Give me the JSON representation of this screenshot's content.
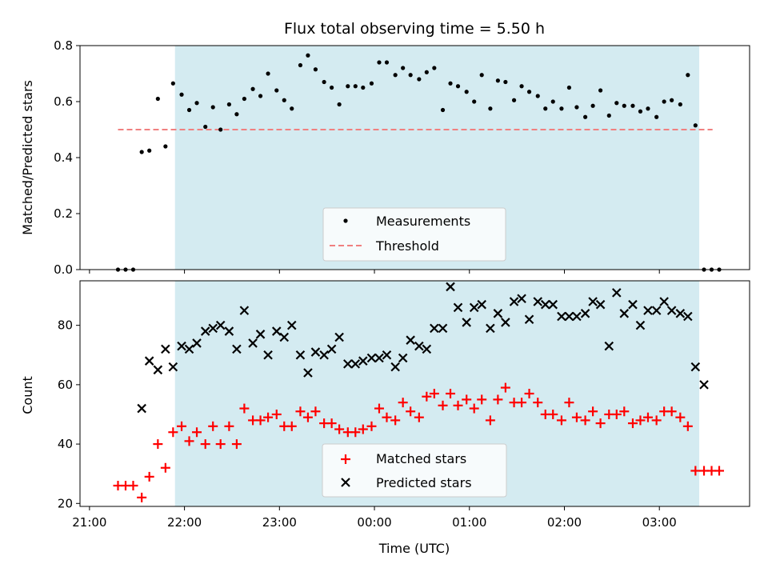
{
  "chart_data": {
    "type": "scatter",
    "title": "Flux total observing time = 5.50 h",
    "xlabel": "Time (UTC)",
    "x_tick_labels": [
      "21:00",
      "22:00",
      "23:00",
      "00:00",
      "01:00",
      "02:00",
      "03:00"
    ],
    "x_tick_hours": [
      0,
      1,
      2,
      3,
      4,
      5,
      6
    ],
    "x_range_hours": [
      -0.1,
      6.95
    ],
    "x_reference": "21:00",
    "observing_window_hours": [
      0.9,
      6.42
    ],
    "observing_window_color": "#d4ebf1",
    "top_panel": {
      "ylabel": "Matched/Predicted stars",
      "ylim": [
        0,
        0.8
      ],
      "yticks": [
        "0.0",
        "0.2",
        "0.4",
        "0.6",
        "0.8"
      ],
      "threshold": 0.5,
      "threshold_x_range_hours": [
        0.3,
        6.56
      ],
      "threshold_color": "#f08080",
      "legend": {
        "position": "lower center",
        "entries": [
          "Measurements",
          "Threshold"
        ]
      },
      "measurements": {
        "name": "Measurements",
        "color": "#000000",
        "x": [
          0.3,
          0.38,
          0.46,
          0.55,
          0.63,
          0.72,
          0.8,
          0.88,
          0.97,
          1.05,
          1.13,
          1.22,
          1.3,
          1.38,
          1.47,
          1.55,
          1.63,
          1.72,
          1.8,
          1.88,
          1.97,
          2.05,
          2.13,
          2.22,
          2.3,
          2.38,
          2.47,
          2.55,
          2.63,
          2.72,
          2.8,
          2.88,
          2.97,
          3.05,
          3.13,
          3.22,
          3.3,
          3.38,
          3.47,
          3.55,
          3.63,
          3.72,
          3.8,
          3.88,
          3.97,
          4.05,
          4.13,
          4.22,
          4.3,
          4.38,
          4.47,
          4.55,
          4.63,
          4.72,
          4.8,
          4.88,
          4.97,
          5.05,
          5.13,
          5.22,
          5.3,
          5.38,
          5.47,
          5.55,
          5.63,
          5.72,
          5.8,
          5.88,
          5.97,
          6.05,
          6.13,
          6.22,
          6.3,
          6.38,
          6.47,
          6.55,
          6.63
        ],
        "y": [
          0,
          0,
          0,
          0.42,
          0.425,
          0.61,
          0.44,
          0.665,
          0.625,
          0.57,
          0.595,
          0.51,
          0.58,
          0.5,
          0.59,
          0.555,
          0.61,
          0.645,
          0.62,
          0.7,
          0.64,
          0.605,
          0.575,
          0.73,
          0.765,
          0.715,
          0.67,
          0.65,
          0.59,
          0.655,
          0.655,
          0.65,
          0.665,
          0.74,
          0.74,
          0.695,
          0.72,
          0.695,
          0.68,
          0.705,
          0.72,
          0.57,
          0.665,
          0.655,
          0.635,
          0.6,
          0.695,
          0.575,
          0.675,
          0.67,
          0.605,
          0.655,
          0.635,
          0.62,
          0.575,
          0.6,
          0.575,
          0.65,
          0.58,
          0.545,
          0.585,
          0.64,
          0.55,
          0.595,
          0.585,
          0.585,
          0.565,
          0.575,
          0.545,
          0.6,
          0.605,
          0.59,
          0.695,
          0.515,
          0,
          0,
          0
        ]
      }
    },
    "bottom_panel": {
      "ylabel": "Count",
      "ylim": [
        19,
        95
      ],
      "yticks": [
        "20",
        "40",
        "60",
        "80"
      ],
      "ytick_values": [
        20,
        40,
        60,
        80
      ],
      "legend": {
        "position": "lower center",
        "entries": [
          "Matched stars",
          "Predicted stars"
        ]
      },
      "series": [
        {
          "name": "Matched stars",
          "marker": "+",
          "color": "#ff0000",
          "x": [
            0.3,
            0.38,
            0.46,
            0.55,
            0.63,
            0.72,
            0.8,
            0.88,
            0.97,
            1.05,
            1.13,
            1.22,
            1.3,
            1.38,
            1.47,
            1.55,
            1.63,
            1.72,
            1.8,
            1.88,
            1.97,
            2.05,
            2.13,
            2.22,
            2.3,
            2.38,
            2.47,
            2.55,
            2.63,
            2.72,
            2.8,
            2.88,
            2.97,
            3.05,
            3.13,
            3.22,
            3.3,
            3.38,
            3.47,
            3.55,
            3.63,
            3.72,
            3.8,
            3.88,
            3.97,
            4.05,
            4.13,
            4.22,
            4.3,
            4.38,
            4.47,
            4.55,
            4.63,
            4.72,
            4.8,
            4.88,
            4.97,
            5.05,
            5.13,
            5.22,
            5.3,
            5.38,
            5.47,
            5.55,
            5.63,
            5.72,
            5.8,
            5.88,
            5.97,
            6.05,
            6.13,
            6.22,
            6.3,
            6.38,
            6.47,
            6.55,
            6.63
          ],
          "y": [
            26,
            26,
            26,
            22,
            29,
            40,
            32,
            44,
            46,
            41,
            44,
            40,
            46,
            40,
            46,
            40,
            52,
            48,
            48,
            49,
            50,
            46,
            46,
            51,
            49,
            51,
            47,
            47,
            45,
            44,
            44,
            45,
            46,
            52,
            49,
            48,
            54,
            51,
            49,
            56,
            57,
            53,
            57,
            53,
            55,
            52,
            55,
            48,
            55,
            59,
            54,
            54,
            57,
            54,
            50,
            50,
            48,
            54,
            49,
            48,
            51,
            47,
            50,
            50,
            51,
            47,
            48,
            49,
            48,
            51,
            51,
            49,
            46,
            31,
            31,
            31,
            31
          ]
        },
        {
          "name": "Predicted stars",
          "marker": "x",
          "color": "#000000",
          "x": [
            0.55,
            0.63,
            0.72,
            0.8,
            0.88,
            0.97,
            1.05,
            1.13,
            1.22,
            1.3,
            1.38,
            1.47,
            1.55,
            1.63,
            1.72,
            1.8,
            1.88,
            1.97,
            2.05,
            2.13,
            2.22,
            2.3,
            2.38,
            2.47,
            2.55,
            2.63,
            2.72,
            2.8,
            2.88,
            2.97,
            3.05,
            3.13,
            3.22,
            3.3,
            3.38,
            3.47,
            3.55,
            3.63,
            3.72,
            3.8,
            3.88,
            3.97,
            4.05,
            4.13,
            4.22,
            4.3,
            4.38,
            4.47,
            4.55,
            4.63,
            4.72,
            4.8,
            4.88,
            4.97,
            5.05,
            5.13,
            5.22,
            5.3,
            5.38,
            5.47,
            5.55,
            5.63,
            5.72,
            5.8,
            5.88,
            5.97,
            6.05,
            6.13,
            6.22,
            6.3,
            6.38,
            6.47
          ],
          "y": [
            52,
            68,
            65,
            72,
            66,
            73,
            72,
            74,
            78,
            79,
            80,
            78,
            72,
            85,
            74,
            77,
            70,
            78,
            76,
            80,
            70,
            64,
            71,
            70,
            72,
            76,
            67,
            67,
            68,
            69,
            69,
            70,
            66,
            69,
            75,
            73,
            72,
            79,
            79,
            93,
            86,
            81,
            86,
            87,
            79,
            84,
            81,
            88,
            89,
            82,
            88,
            87,
            87,
            83,
            83,
            83,
            84,
            88,
            87,
            73,
            91,
            84,
            87,
            80,
            85,
            85,
            88,
            85,
            84,
            83,
            66,
            60
          ]
        }
      ]
    }
  }
}
